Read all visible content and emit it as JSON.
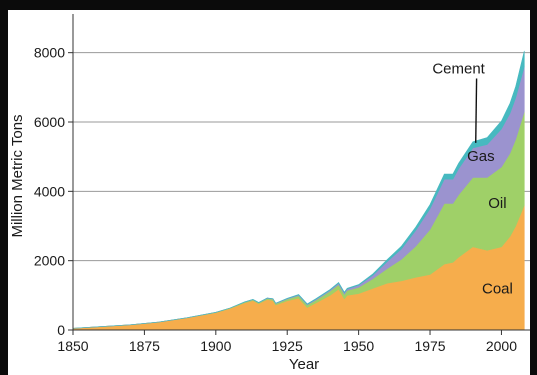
{
  "chart_data": {
    "type": "area",
    "stacked": true,
    "xlabel": "Year",
    "ylabel": "Million Metric Tons",
    "xlim": [
      1850,
      2010
    ],
    "ylim": [
      0,
      9000
    ],
    "x_ticks": [
      1850,
      1875,
      1900,
      1925,
      1950,
      1975,
      2000
    ],
    "y_ticks": [
      0,
      2000,
      4000,
      6000,
      8000
    ],
    "grid": {
      "horizontal": true,
      "vertical": false
    },
    "legend": "none",
    "x": [
      1850,
      1860,
      1870,
      1880,
      1890,
      1900,
      1905,
      1910,
      1913,
      1915,
      1918,
      1920,
      1921,
      1925,
      1929,
      1932,
      1935,
      1940,
      1943,
      1945,
      1946,
      1950,
      1955,
      1960,
      1965,
      1970,
      1975,
      1980,
      1983,
      1985,
      1990,
      1995,
      2000,
      2003,
      2005,
      2008
    ],
    "series": [
      {
        "name": "Coal",
        "color": "#f6ad4c",
        "values": [
          50,
          100,
          150,
          230,
          350,
          500,
          620,
          780,
          850,
          760,
          880,
          850,
          720,
          840,
          920,
          650,
          780,
          1000,
          1180,
          900,
          1000,
          1050,
          1200,
          1350,
          1420,
          1520,
          1600,
          1900,
          1950,
          2100,
          2400,
          2300,
          2400,
          2700,
          3000,
          3600
        ]
      },
      {
        "name": "Oil",
        "color": "#9fd068",
        "values": [
          0,
          0,
          0,
          0,
          5,
          10,
          15,
          20,
          25,
          25,
          30,
          40,
          40,
          50,
          70,
          70,
          80,
          120,
          130,
          130,
          140,
          180,
          280,
          420,
          620,
          900,
          1300,
          1750,
          1700,
          1800,
          2000,
          2100,
          2300,
          2400,
          2500,
          2700
        ]
      },
      {
        "name": "Gas",
        "color": "#9b93cf",
        "values": [
          0,
          0,
          0,
          0,
          0,
          0,
          0,
          5,
          5,
          5,
          10,
          10,
          10,
          15,
          20,
          20,
          25,
          30,
          40,
          40,
          45,
          60,
          100,
          200,
          300,
          450,
          600,
          700,
          700,
          750,
          850,
          950,
          1100,
          1150,
          1200,
          1300
        ]
      },
      {
        "name": "Cement",
        "color": "#47b9c0",
        "values": [
          0,
          0,
          0,
          0,
          0,
          0,
          0,
          5,
          5,
          5,
          5,
          5,
          5,
          10,
          15,
          15,
          15,
          20,
          20,
          20,
          20,
          20,
          40,
          60,
          80,
          100,
          120,
          150,
          150,
          160,
          180,
          200,
          230,
          290,
          330,
          450
        ]
      }
    ],
    "annotations": [
      {
        "text": "Cement",
        "series": "Cement",
        "with_pointer": true
      },
      {
        "text": "Gas",
        "series": "Gas"
      },
      {
        "text": "Oil",
        "series": "Oil"
      },
      {
        "text": "Coal",
        "series": "Coal"
      }
    ],
    "colors": {
      "background": "#0b0b0b",
      "plot_area": "#ffffff",
      "grid": "#9a9a9a",
      "axis": "#333333"
    }
  }
}
